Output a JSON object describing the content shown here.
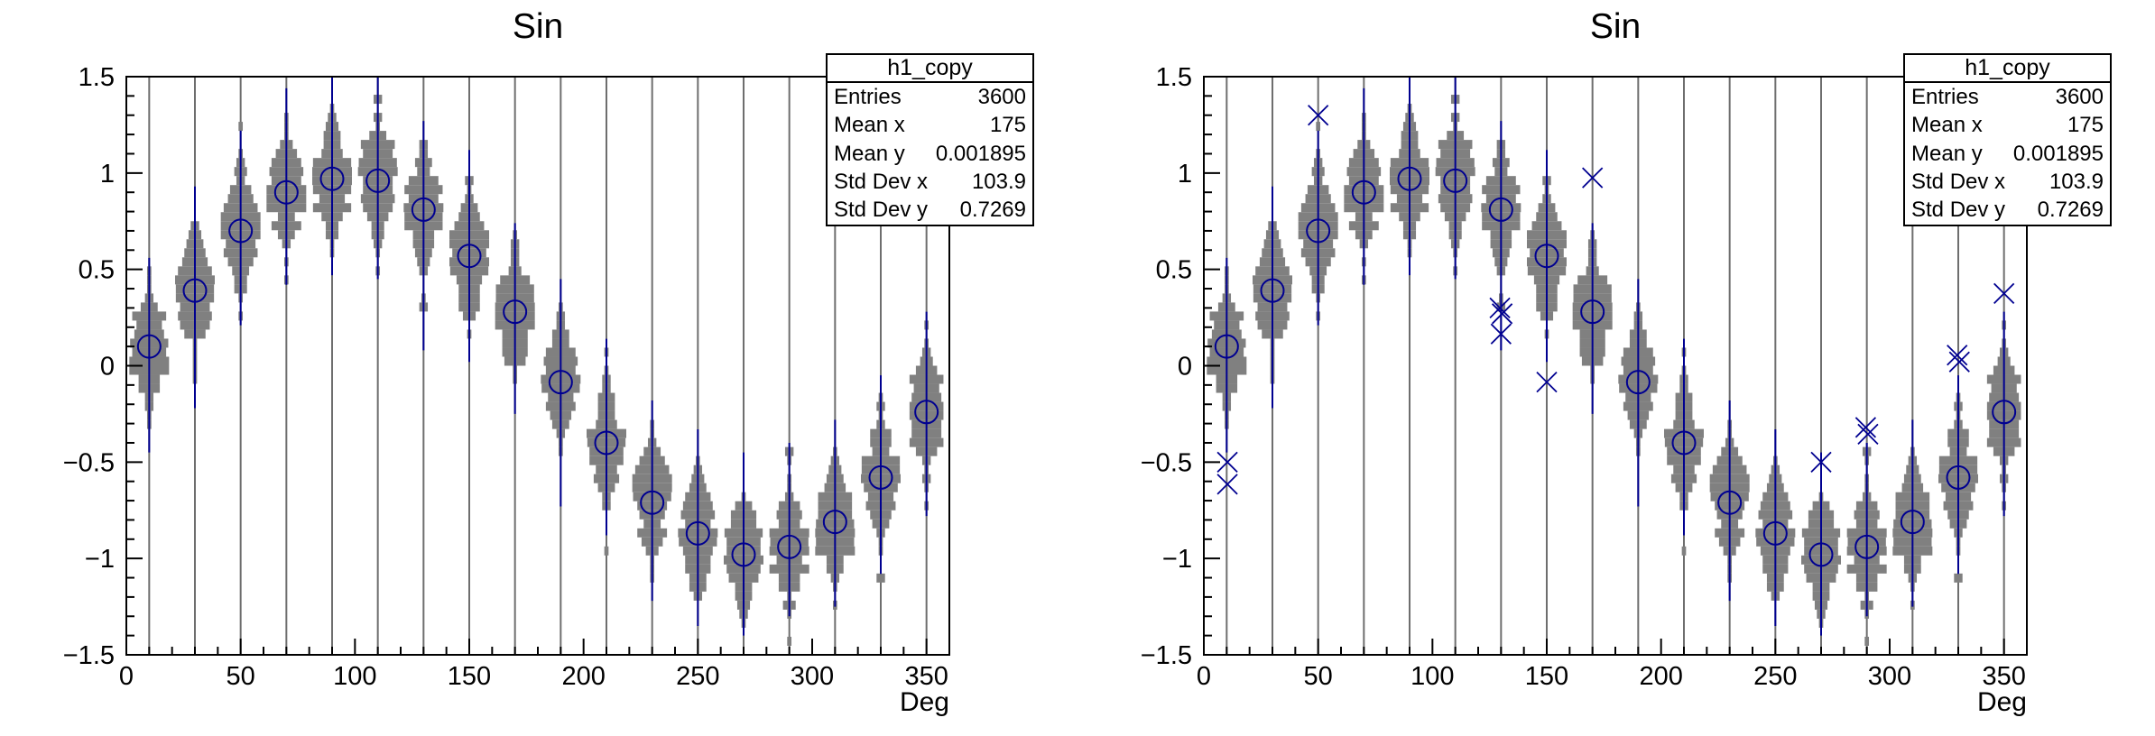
{
  "panels": [
    {
      "title": "Sin",
      "show_outlier_markers": false
    },
    {
      "title": "Sin",
      "show_outlier_markers": true
    }
  ],
  "stats_box": {
    "title": "h1_copy",
    "rows": [
      {
        "label": "Entries",
        "value": "3600"
      },
      {
        "label": "Mean x",
        "value": "175"
      },
      {
        "label": "Mean y",
        "value": "0.001895"
      },
      {
        "label": "Std Dev x",
        "value": "103.9"
      },
      {
        "label": "Std Dev y",
        "value": "0.7269"
      }
    ]
  },
  "colors": {
    "marker_blue": "#000090",
    "violin_gray": "#808080",
    "grid_line": "#6e6e6e",
    "frame": "#000000",
    "stats_bg": "#ffffff",
    "text": "#000000"
  },
  "chart_data": {
    "type": "violin",
    "title": "Sin",
    "xlabel": "Deg",
    "ylabel": "",
    "x_range": [
      0,
      360
    ],
    "y_range": [
      -1.5,
      1.5
    ],
    "x_major_ticks": [
      0,
      50,
      100,
      150,
      200,
      250,
      300,
      350
    ],
    "x_minor_step": 10,
    "y_major_ticks": [
      -1.5,
      -1,
      -0.5,
      0,
      0.5,
      1,
      1.5
    ],
    "y_tick_labels": [
      "−1.5",
      "−1",
      "−0.5",
      "0",
      "0.5",
      "1",
      "1.5"
    ],
    "y_minor_step": 0.1,
    "grid": "vertical-lines-at-bin-centers",
    "legend": "none",
    "bin_width_deg": 20,
    "entries_total": 3600,
    "entries_per_bin": 200,
    "gaussian_sigma": 0.17,
    "bins": [
      {
        "x": 10,
        "mean": 0.1,
        "whisker_lo": -0.45,
        "whisker_hi": 0.56
      },
      {
        "x": 30,
        "mean": 0.39,
        "whisker_lo": -0.22,
        "whisker_hi": 0.93
      },
      {
        "x": 50,
        "mean": 0.7,
        "whisker_lo": 0.21,
        "whisker_hi": 1.22
      },
      {
        "x": 70,
        "mean": 0.9,
        "whisker_lo": 0.42,
        "whisker_hi": 1.44
      },
      {
        "x": 90,
        "mean": 0.97,
        "whisker_lo": 0.47,
        "whisker_hi": 1.5
      },
      {
        "x": 110,
        "mean": 0.96,
        "whisker_lo": 0.45,
        "whisker_hi": 1.5
      },
      {
        "x": 130,
        "mean": 0.81,
        "whisker_lo": 0.08,
        "whisker_hi": 1.27
      },
      {
        "x": 150,
        "mean": 0.57,
        "whisker_lo": 0.02,
        "whisker_hi": 1.12
      },
      {
        "x": 170,
        "mean": 0.28,
        "whisker_lo": -0.25,
        "whisker_hi": 0.74
      },
      {
        "x": 190,
        "mean": -0.085,
        "whisker_lo": -0.73,
        "whisker_hi": 0.45
      },
      {
        "x": 210,
        "mean": -0.4,
        "whisker_lo": -0.88,
        "whisker_hi": 0.14
      },
      {
        "x": 230,
        "mean": -0.71,
        "whisker_lo": -1.22,
        "whisker_hi": -0.18
      },
      {
        "x": 250,
        "mean": -0.87,
        "whisker_lo": -1.35,
        "whisker_hi": -0.33
      },
      {
        "x": 270,
        "mean": -0.98,
        "whisker_lo": -1.4,
        "whisker_hi": -0.45
      },
      {
        "x": 290,
        "mean": -0.94,
        "whisker_lo": -1.3,
        "whisker_hi": -0.4
      },
      {
        "x": 310,
        "mean": -0.81,
        "whisker_lo": -1.25,
        "whisker_hi": -0.28
      },
      {
        "x": 330,
        "mean": -0.58,
        "whisker_lo": -1.08,
        "whisker_hi": -0.05
      },
      {
        "x": 350,
        "mean": -0.24,
        "whisker_lo": -0.78,
        "whisker_hi": 0.28
      }
    ],
    "outliers_right_panel": [
      {
        "x": 10.3,
        "y": -0.5
      },
      {
        "x": 10.3,
        "y": -0.615
      },
      {
        "x": 50,
        "y": 1.3
      },
      {
        "x": 129.5,
        "y": 0.3
      },
      {
        "x": 130.5,
        "y": 0.27
      },
      {
        "x": 130,
        "y": 0.165
      },
      {
        "x": 150,
        "y": -0.085
      },
      {
        "x": 170,
        "y": 0.975
      },
      {
        "x": 270,
        "y": -0.5
      },
      {
        "x": 289.5,
        "y": -0.32
      },
      {
        "x": 290.5,
        "y": -0.355
      },
      {
        "x": 329.5,
        "y": 0.055
      },
      {
        "x": 330.5,
        "y": 0.02
      },
      {
        "x": 350,
        "y": 0.375
      }
    ]
  }
}
